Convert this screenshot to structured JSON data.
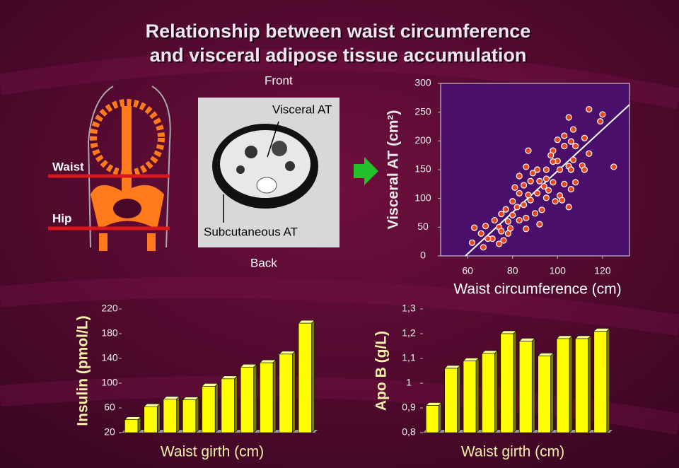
{
  "slide": {
    "title": [
      "Relationship between waist circumference",
      "and visceral adipose tissue accumulation"
    ],
    "front": "Front",
    "back": "Back",
    "visceral": "Visceral AT",
    "subcutaneous": "Subcutaneous AT",
    "waist": "Waist",
    "hip": "Hip"
  },
  "chart_data": [
    {
      "type": "scatter",
      "xlabel": "Waist circumference (cm)",
      "ylabel": "Visceral AT (cm²)",
      "x": [
        114,
        120,
        105,
        119,
        107,
        103,
        112,
        100,
        106,
        108,
        103,
        98,
        87,
        97,
        114,
        107,
        100,
        105,
        98,
        86,
        111,
        125,
        112,
        106,
        101,
        95,
        91,
        89,
        83,
        95,
        88,
        92,
        98,
        103,
        108,
        85,
        94,
        81,
        96,
        106,
        83,
        91,
        87,
        101,
        95,
        88,
        102,
        80,
        99,
        85,
        82,
        105,
        93,
        77,
        90,
        75,
        80,
        86,
        72,
        78,
        83,
        92,
        68,
        74,
        63,
        79,
        86,
        66,
        75,
        78,
        71,
        76,
        62,
        74,
        67,
        69
      ],
      "values": [
        255,
        246,
        241,
        234,
        220,
        209,
        205,
        202,
        199,
        191,
        191,
        183,
        183,
        175,
        178,
        167,
        165,
        156,
        164,
        155,
        157,
        155,
        150,
        150,
        150,
        150,
        150,
        144,
        139,
        134,
        130,
        130,
        128,
        125,
        128,
        123,
        121,
        119,
        114,
        116,
        109,
        109,
        106,
        105,
        101,
        97,
        97,
        95,
        95,
        89,
        85,
        85,
        80,
        81,
        74,
        73,
        71,
        66,
        62,
        60,
        62,
        55,
        52,
        50,
        49,
        48,
        47,
        39,
        43,
        39,
        30,
        27,
        23,
        21,
        15,
        30
      ],
      "color": "#e8481c",
      "trend_line": {
        "x": [
          59,
          132
        ],
        "values": [
          0,
          263
        ],
        "color": "#ffffff"
      },
      "xlim": [
        48,
        132
      ],
      "ylim": [
        0,
        300
      ],
      "xticks": [
        60,
        80,
        100,
        120
      ],
      "yticks": [
        0,
        50,
        100,
        150,
        200,
        250,
        300
      ]
    },
    {
      "type": "bar",
      "xlabel": "Waist girth (cm)",
      "ylabel": "Insulin (pmol/L)",
      "categories": [
        null,
        null,
        null,
        null,
        null,
        null,
        null,
        null,
        null,
        null
      ],
      "values": [
        41,
        62,
        74,
        73,
        95,
        107,
        126,
        133,
        147,
        197
      ],
      "color": "#ffff00",
      "ylim": [
        20,
        220
      ],
      "yticks": [
        20,
        60,
        100,
        140,
        180,
        220
      ]
    },
    {
      "type": "bar",
      "xlabel": "Waist girth (cm)",
      "ylabel": "Apo B (g/L)",
      "categories": [
        null,
        null,
        null,
        null,
        null,
        null,
        null,
        null,
        null,
        null
      ],
      "values": [
        0.91,
        1.06,
        1.09,
        1.12,
        1.2,
        1.17,
        1.11,
        1.18,
        1.18,
        1.21
      ],
      "color": "#ffff00",
      "ylim": [
        0.8,
        1.3
      ],
      "yticks": [
        {
          "value": 0.8,
          "label": "0,8"
        },
        {
          "value": 0.9,
          "label": "0,9"
        },
        1,
        {
          "value": 1.1,
          "label": "1,1"
        },
        {
          "value": 1.2,
          "label": "1,2"
        },
        {
          "value": 1.3,
          "label": "1,3"
        }
      ]
    }
  ]
}
